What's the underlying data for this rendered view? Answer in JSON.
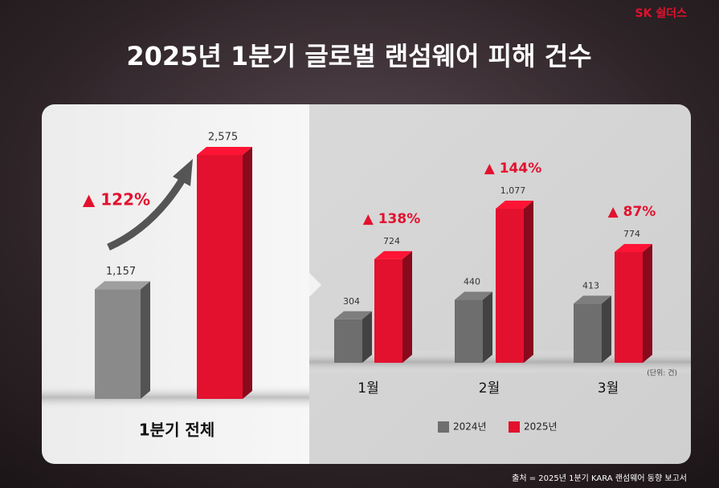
{
  "header": {
    "brand": "SK 쉴더스",
    "title": "2025년 1분기 글로벌 랜섬웨어 피해 건수"
  },
  "chart_data": [
    {
      "type": "bar",
      "title": "1분기 전체",
      "series": [
        {
          "color": "#8a8a8a",
          "values": [
            1157
          ],
          "value_labels": [
            "1,157"
          ]
        },
        {
          "color": "#e3112e",
          "values": [
            2575
          ],
          "value_labels": [
            "2,575"
          ]
        }
      ],
      "annotations": [
        "▲ 122%"
      ]
    },
    {
      "type": "bar",
      "categories": [
        "1월",
        "2월",
        "3월"
      ],
      "series": [
        {
          "name": "2024년",
          "color": "#6e6e6e",
          "values": [
            304,
            440,
            413
          ],
          "value_labels": [
            "304",
            "440",
            "413"
          ]
        },
        {
          "name": "2025년",
          "color": "#e3112e",
          "values": [
            724,
            1077,
            774
          ],
          "value_labels": [
            "724",
            "1,077",
            "774"
          ]
        }
      ],
      "annotations": [
        "▲ 138%",
        "▲ 144%",
        "▲ 87%"
      ],
      "unit_note": "(단위: 건)"
    }
  ],
  "source": "출처 = 2025년 1분기 KARA 랜섬웨어 동향 보고서"
}
